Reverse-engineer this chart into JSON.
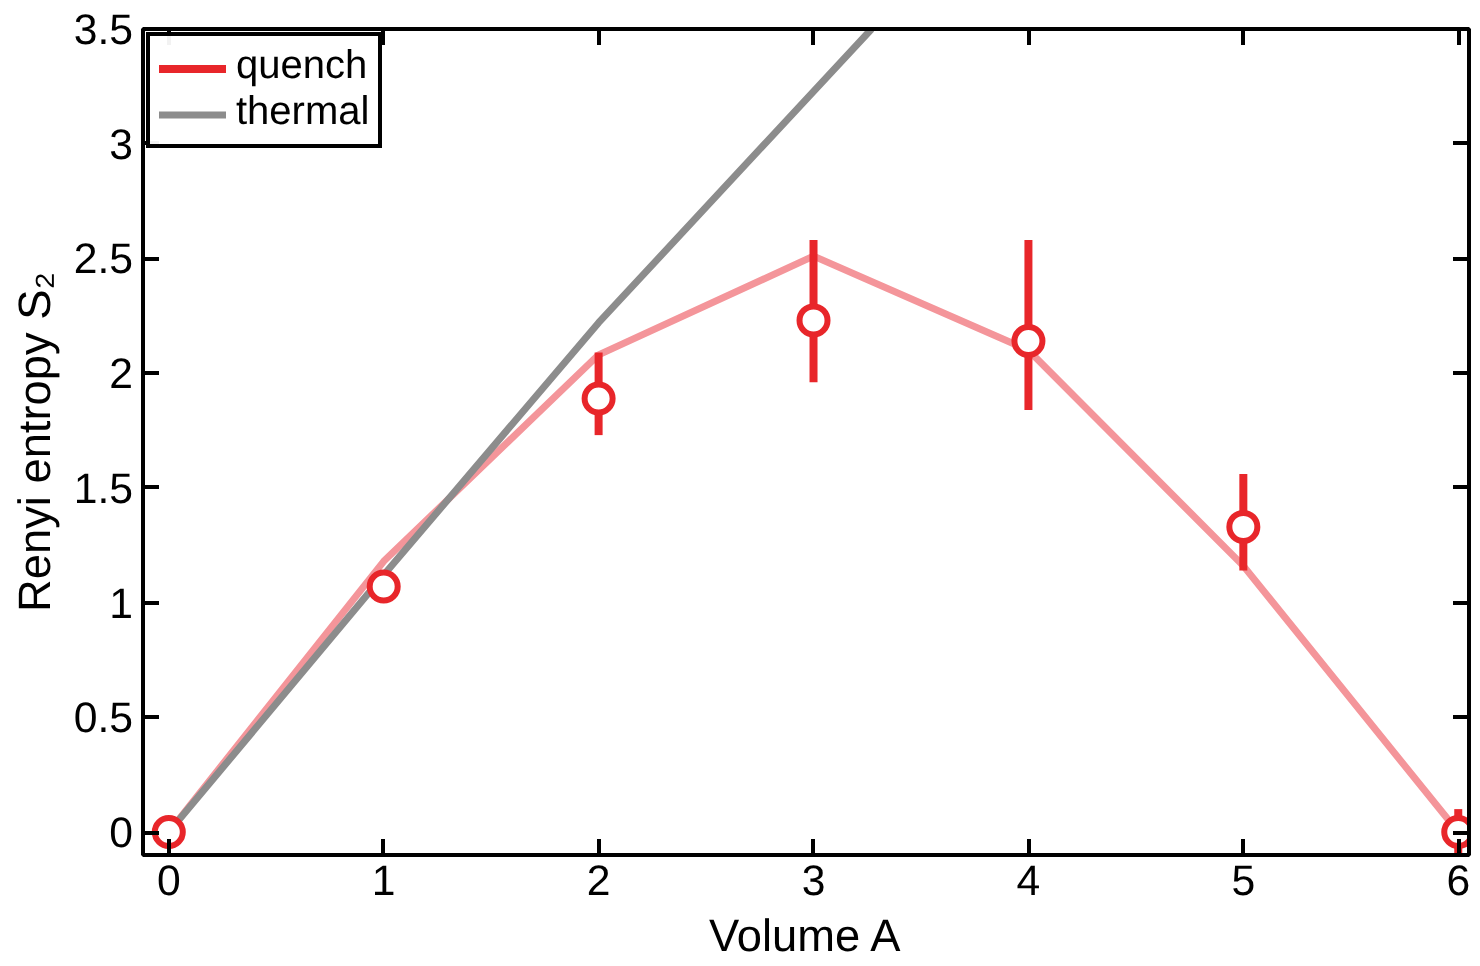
{
  "chart_data": {
    "type": "scatter",
    "xlabel": "Volume A",
    "ylabel": "Renyi entropy S₂",
    "x": [
      0,
      1,
      2,
      3,
      4,
      5,
      6
    ],
    "xlim": [
      -0.12,
      6.05
    ],
    "ylim": [
      -0.1,
      3.5
    ],
    "xticks": [
      0,
      1,
      2,
      3,
      4,
      5,
      6
    ],
    "yticks": [
      0,
      0.5,
      1,
      1.5,
      2,
      2.5,
      3,
      3.5
    ],
    "grid": false,
    "legend": "top left",
    "series": [
      {
        "name": "quench",
        "marker": "circle",
        "color": "#e8262a",
        "values": [
          0,
          1.07,
          1.89,
          2.23,
          2.14,
          1.33,
          0
        ],
        "errors": [
          null,
          null,
          [
            1.73,
            2.09
          ],
          [
            1.96,
            2.58
          ],
          [
            1.84,
            2.58
          ],
          [
            1.14,
            1.56
          ],
          [
            -0.1,
            0.1
          ]
        ]
      },
      {
        "type": "line",
        "color": "#f4959a",
        "values": [
          0,
          1.18,
          2.08,
          2.51,
          2.1,
          1.16,
          0
        ]
      },
      {
        "name": "thermal",
        "type": "line",
        "color": "#8c8c8c",
        "x": [
          0,
          1,
          2,
          3.27
        ],
        "values": [
          0,
          1.12,
          2.22,
          3.5
        ]
      }
    ]
  }
}
